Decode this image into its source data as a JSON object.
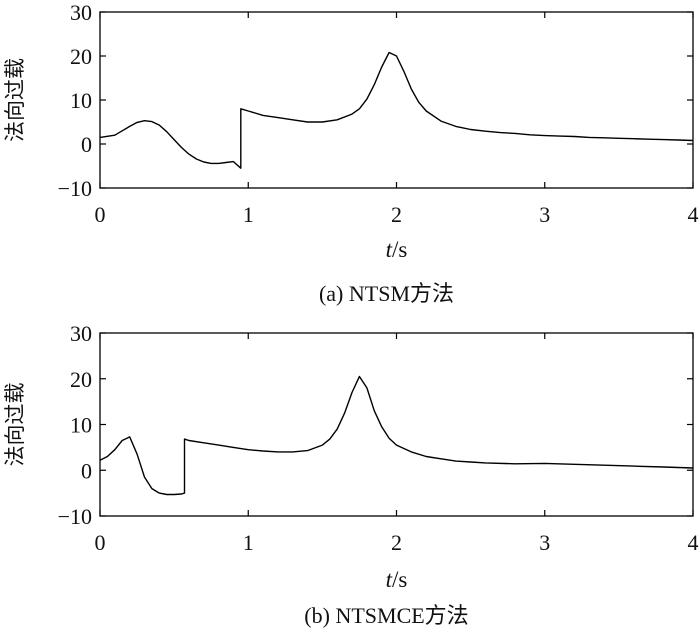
{
  "chart_data": [
    {
      "type": "line",
      "caption": "(a) NTSM方法",
      "xlabel_italic": "t",
      "xlabel_rest": "/s",
      "ylabel": "法向过载",
      "xlim": [
        0,
        4
      ],
      "ylim": [
        -10,
        30
      ],
      "xticks": [
        "0",
        "1",
        "2",
        "3",
        "4"
      ],
      "yticks": [
        "−10",
        "0",
        "10",
        "20",
        "30"
      ],
      "grid": false,
      "series": [
        {
          "x": [
            0,
            0.1,
            0.15,
            0.2,
            0.25,
            0.3,
            0.35,
            0.4,
            0.45,
            0.5,
            0.55,
            0.6,
            0.65,
            0.7,
            0.75,
            0.8,
            0.85,
            0.9,
            0.95,
            0.95,
            1.0,
            1.1,
            1.2,
            1.3,
            1.4,
            1.5,
            1.6,
            1.7,
            1.75,
            1.8,
            1.85,
            1.9,
            1.95,
            2.0,
            2.05,
            2.1,
            2.15,
            2.2,
            2.3,
            2.4,
            2.5,
            2.6,
            2.7,
            2.8,
            2.9,
            3.0,
            3.1,
            3.2,
            3.3,
            3.4,
            3.5,
            3.6,
            3.7,
            3.8,
            3.9,
            4.0
          ],
          "y": [
            1.5,
            2.0,
            3.0,
            4.0,
            4.9,
            5.3,
            5.1,
            4.3,
            2.8,
            1.0,
            -0.8,
            -2.3,
            -3.4,
            -4.1,
            -4.4,
            -4.4,
            -4.2,
            -4.0,
            -5.5,
            8.0,
            7.5,
            6.5,
            6.0,
            5.5,
            5.0,
            5.0,
            5.5,
            6.8,
            8.0,
            10.2,
            13.5,
            17.5,
            20.8,
            20.0,
            16.5,
            12.5,
            9.5,
            7.5,
            5.2,
            4.0,
            3.3,
            2.9,
            2.6,
            2.4,
            2.1,
            1.9,
            1.8,
            1.7,
            1.5,
            1.4,
            1.3,
            1.2,
            1.1,
            1.0,
            0.9,
            0.8
          ]
        }
      ]
    },
    {
      "type": "line",
      "caption": "(b) NTSMCE方法",
      "xlabel_italic": "t",
      "xlabel_rest": "/s",
      "ylabel": "法向过载",
      "xlim": [
        0,
        4
      ],
      "ylim": [
        -10,
        30
      ],
      "xticks": [
        "0",
        "1",
        "2",
        "3",
        "4"
      ],
      "yticks": [
        "−10",
        "0",
        "10",
        "20",
        "30"
      ],
      "grid": false,
      "series": [
        {
          "x": [
            0,
            0.05,
            0.1,
            0.15,
            0.2,
            0.25,
            0.3,
            0.35,
            0.4,
            0.45,
            0.5,
            0.55,
            0.57,
            0.57,
            0.6,
            0.7,
            0.8,
            0.9,
            1.0,
            1.1,
            1.2,
            1.3,
            1.4,
            1.5,
            1.55,
            1.6,
            1.65,
            1.7,
            1.75,
            1.8,
            1.85,
            1.9,
            1.95,
            2.0,
            2.1,
            2.2,
            2.3,
            2.4,
            2.5,
            2.6,
            2.8,
            3.0,
            3.2,
            3.4,
            3.6,
            3.8,
            4.0
          ],
          "y": [
            2.2,
            3.0,
            4.5,
            6.5,
            7.3,
            3.5,
            -1.5,
            -4.0,
            -5.0,
            -5.3,
            -5.3,
            -5.2,
            -5.0,
            6.8,
            6.5,
            6.0,
            5.5,
            5.0,
            4.5,
            4.2,
            4.0,
            4.0,
            4.3,
            5.5,
            6.8,
            9.0,
            12.5,
            17.0,
            20.5,
            18.0,
            13.0,
            9.5,
            7.0,
            5.5,
            4.0,
            3.0,
            2.5,
            2.0,
            1.8,
            1.6,
            1.4,
            1.5,
            1.3,
            1.1,
            0.9,
            0.7,
            0.5
          ]
        }
      ]
    }
  ]
}
